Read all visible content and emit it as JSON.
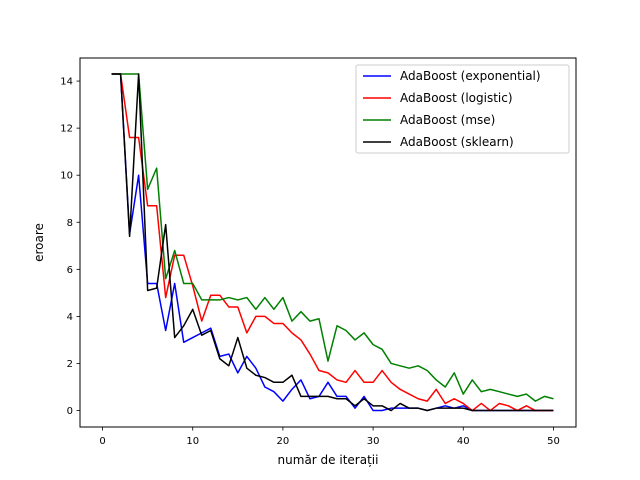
{
  "chart_data": {
    "type": "line",
    "title": "",
    "xlabel": "număr de iterații",
    "ylabel": "eroare",
    "xlim": [
      -2.5,
      52.5
    ],
    "ylim": [
      -0.7,
      14.98
    ],
    "xticks": [
      0,
      10,
      20,
      30,
      40,
      50
    ],
    "yticks": [
      0,
      2,
      4,
      6,
      8,
      10,
      12,
      14
    ],
    "grid": false,
    "legend_position": "top-right",
    "x": [
      1,
      2,
      3,
      4,
      5,
      6,
      7,
      8,
      9,
      10,
      11,
      12,
      13,
      14,
      15,
      16,
      17,
      18,
      19,
      20,
      21,
      22,
      23,
      24,
      25,
      26,
      27,
      28,
      29,
      30,
      31,
      32,
      33,
      34,
      35,
      36,
      37,
      38,
      39,
      40,
      41,
      42,
      43,
      44,
      45,
      46,
      47,
      48,
      49,
      50
    ],
    "series": [
      {
        "name": "AdaBoost (exponential)",
        "color": "#0000ff",
        "values": [
          14.3,
          14.3,
          7.5,
          10.0,
          5.4,
          5.4,
          3.4,
          5.4,
          2.9,
          3.1,
          3.3,
          3.5,
          2.3,
          2.4,
          1.6,
          2.3,
          1.8,
          1.0,
          0.8,
          0.4,
          0.9,
          1.3,
          0.5,
          0.6,
          1.2,
          0.6,
          0.6,
          0.1,
          0.6,
          0.0,
          0.0,
          0.1,
          0.1,
          0.1,
          0.1,
          0.0,
          0.1,
          0.2,
          0.1,
          0.2,
          0.0,
          0.0,
          0.0,
          0.0,
          0.0,
          0.0,
          0.0,
          0.0,
          0.0,
          0.0
        ]
      },
      {
        "name": "AdaBoost (logistic)",
        "color": "#ff0000",
        "values": [
          14.3,
          14.3,
          11.6,
          11.6,
          8.7,
          8.7,
          4.8,
          6.6,
          6.6,
          5.3,
          3.8,
          4.9,
          4.9,
          4.4,
          4.4,
          3.3,
          4.0,
          4.0,
          3.7,
          3.7,
          3.3,
          3.0,
          2.4,
          1.7,
          1.6,
          1.3,
          1.2,
          1.7,
          1.2,
          1.2,
          1.7,
          1.2,
          0.9,
          0.7,
          0.5,
          0.4,
          0.9,
          0.3,
          0.5,
          0.3,
          0.0,
          0.3,
          0.0,
          0.3,
          0.2,
          0.0,
          0.2,
          0.0,
          0.0,
          0.0
        ]
      },
      {
        "name": "AdaBoost (mse)",
        "color": "#008000",
        "values": [
          14.3,
          14.3,
          14.3,
          14.3,
          9.4,
          10.3,
          5.6,
          6.8,
          5.4,
          5.4,
          4.7,
          4.7,
          4.7,
          4.8,
          4.7,
          4.8,
          4.3,
          4.8,
          4.3,
          4.8,
          3.8,
          4.2,
          3.8,
          3.9,
          2.1,
          3.6,
          3.4,
          3.0,
          3.3,
          2.8,
          2.6,
          2.0,
          1.9,
          1.8,
          1.9,
          1.7,
          1.3,
          1.0,
          1.6,
          0.7,
          1.3,
          0.8,
          0.9,
          0.8,
          0.7,
          0.6,
          0.7,
          0.4,
          0.6,
          0.5
        ]
      },
      {
        "name": "AdaBoost (sklearn)",
        "color": "#000000",
        "values": [
          14.3,
          14.3,
          7.4,
          14.3,
          5.1,
          5.2,
          7.9,
          3.1,
          3.6,
          4.3,
          3.2,
          3.4,
          2.2,
          1.9,
          3.1,
          1.8,
          1.5,
          1.4,
          1.2,
          1.2,
          1.5,
          0.6,
          0.6,
          0.6,
          0.6,
          0.5,
          0.5,
          0.2,
          0.5,
          0.2,
          0.2,
          0.0,
          0.3,
          0.1,
          0.1,
          0.0,
          0.1,
          0.1,
          0.1,
          0.1,
          0.0,
          0.0,
          0.0,
          0.0,
          0.0,
          0.0,
          0.0,
          0.0,
          0.0,
          0.0
        ]
      }
    ]
  }
}
